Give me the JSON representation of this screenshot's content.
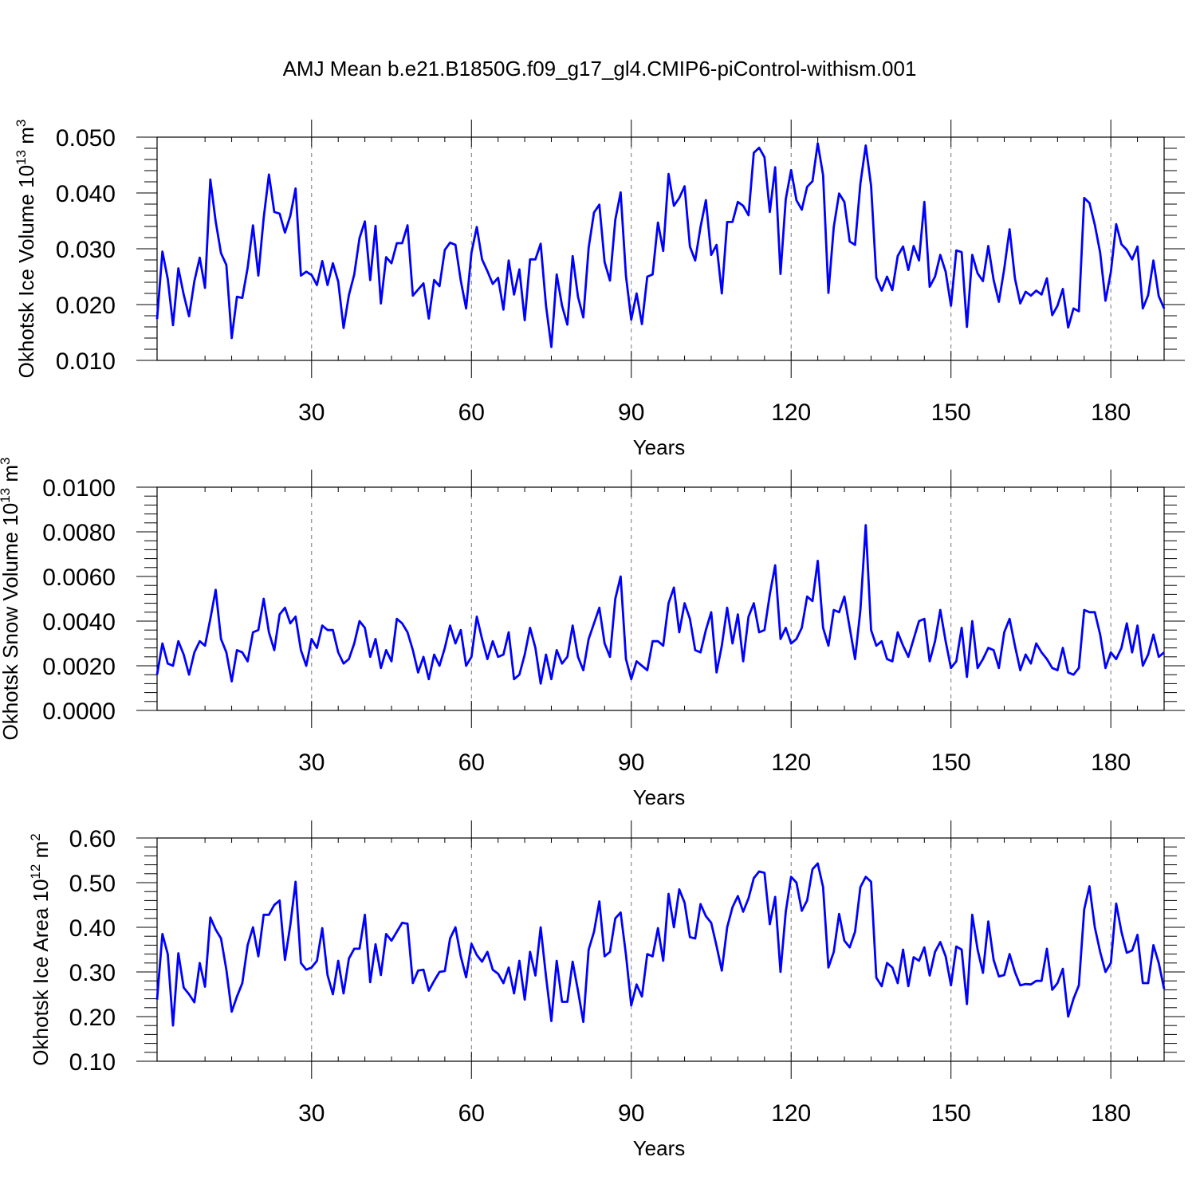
{
  "title": "AMJ Mean b.e21.B1850G.f09_g17_gl4.CMIP6-piControl-withism.001",
  "chart_data": [
    {
      "type": "line",
      "title": "",
      "xlabel": "Years",
      "ylabel_main": "Okhotsk Ice Volume 10",
      "ylabel_exp1": "13",
      "ylabel_unit": " m",
      "ylabel_exp2": "3",
      "xlim": [
        1,
        190
      ],
      "ylim": [
        0.01,
        0.05
      ],
      "xticks": [
        30,
        60,
        90,
        120,
        150,
        180
      ],
      "xtick_labels": [
        "30",
        "60",
        "90",
        "120",
        "150",
        "180"
      ],
      "yticks": [
        0.01,
        0.02,
        0.03,
        0.04,
        0.05
      ],
      "ytick_labels": [
        "0.010",
        "0.020",
        "0.030",
        "0.040",
        "0.050"
      ],
      "grid": "vertical dashed at x ticks",
      "color": "#0000ff",
      "series": [
        {
          "name": "Okhotsk Ice Volume",
          "values": [
            0.0174,
            0.0295,
            0.0246,
            0.0163,
            0.0265,
            0.0218,
            0.0179,
            0.0242,
            0.0284,
            0.023,
            0.0424,
            0.0349,
            0.0292,
            0.0271,
            0.014,
            0.0214,
            0.0212,
            0.0266,
            0.0342,
            0.0252,
            0.0355,
            0.0433,
            0.0366,
            0.0363,
            0.0329,
            0.0359,
            0.0408,
            0.0252,
            0.0259,
            0.0253,
            0.0235,
            0.0278,
            0.0235,
            0.0274,
            0.0241,
            0.0158,
            0.0217,
            0.0254,
            0.0319,
            0.0349,
            0.0244,
            0.0341,
            0.0202,
            0.0285,
            0.0274,
            0.031,
            0.031,
            0.0342,
            0.0216,
            0.0227,
            0.0238,
            0.0175,
            0.0244,
            0.0233,
            0.0298,
            0.0311,
            0.0307,
            0.0243,
            0.0193,
            0.0293,
            0.0339,
            0.0281,
            0.026,
            0.0237,
            0.0248,
            0.0191,
            0.0279,
            0.0218,
            0.0263,
            0.0172,
            0.0281,
            0.0281,
            0.0309,
            0.0198,
            0.0124,
            0.0254,
            0.0198,
            0.0164,
            0.0287,
            0.0214,
            0.0177,
            0.0302,
            0.0365,
            0.0379,
            0.0276,
            0.0243,
            0.0352,
            0.0401,
            0.0251,
            0.0173,
            0.022,
            0.0165,
            0.025,
            0.0254,
            0.0347,
            0.0296,
            0.0434,
            0.0377,
            0.0391,
            0.0412,
            0.0304,
            0.0279,
            0.0339,
            0.0387,
            0.0289,
            0.0307,
            0.022,
            0.0348,
            0.0348,
            0.0384,
            0.0377,
            0.036,
            0.0472,
            0.0481,
            0.0464,
            0.0366,
            0.0446,
            0.0255,
            0.0389,
            0.0441,
            0.0387,
            0.037,
            0.0411,
            0.0421,
            0.0489,
            0.0432,
            0.0221,
            0.0339,
            0.0399,
            0.0384,
            0.0313,
            0.0307,
            0.0417,
            0.0485,
            0.0413,
            0.0248,
            0.0225,
            0.025,
            0.0226,
            0.0287,
            0.0304,
            0.0262,
            0.0305,
            0.0279,
            0.0384,
            0.0232,
            0.025,
            0.0289,
            0.0259,
            0.0198,
            0.0297,
            0.0294,
            0.016,
            0.0289,
            0.0256,
            0.0242,
            0.0305,
            0.0244,
            0.0205,
            0.0264,
            0.0335,
            0.0247,
            0.0202,
            0.0223,
            0.0216,
            0.0225,
            0.0218,
            0.0247,
            0.0181,
            0.0198,
            0.0228,
            0.0159,
            0.0193,
            0.0188,
            0.0391,
            0.0382,
            0.0343,
            0.0293,
            0.0207,
            0.0258,
            0.0344,
            0.0308,
            0.0298,
            0.0281,
            0.0304,
            0.0193,
            0.0217,
            0.0279,
            0.0215,
            0.0193
          ]
        }
      ]
    },
    {
      "type": "line",
      "title": "",
      "xlabel": "Years",
      "ylabel_main": "Okhotsk Snow Volume 10",
      "ylabel_exp1": "13",
      "ylabel_unit": " m",
      "ylabel_exp2": "3",
      "xlim": [
        1,
        190
      ],
      "ylim": [
        0.0,
        0.01
      ],
      "xticks": [
        30,
        60,
        90,
        120,
        150,
        180
      ],
      "xtick_labels": [
        "30",
        "60",
        "90",
        "120",
        "150",
        "180"
      ],
      "yticks": [
        0.0,
        0.002,
        0.004,
        0.006,
        0.008,
        0.01
      ],
      "ytick_labels": [
        "0.0000",
        "0.0020",
        "0.0040",
        "0.0060",
        "0.0080",
        "0.0100"
      ],
      "grid": "vertical dashed at x ticks",
      "color": "#0000ff",
      "series": [
        {
          "name": "Okhotsk Snow Volume",
          "values": [
            0.0016,
            0.003,
            0.0021,
            0.002,
            0.0031,
            0.0025,
            0.0016,
            0.0026,
            0.0031,
            0.0029,
            0.0041,
            0.0054,
            0.0032,
            0.0026,
            0.0013,
            0.0027,
            0.0026,
            0.0022,
            0.0035,
            0.0036,
            0.005,
            0.0035,
            0.0027,
            0.0043,
            0.0046,
            0.0039,
            0.0042,
            0.0027,
            0.002,
            0.0032,
            0.0028,
            0.0038,
            0.0036,
            0.0036,
            0.0026,
            0.0021,
            0.0023,
            0.003,
            0.004,
            0.0037,
            0.0024,
            0.0032,
            0.0019,
            0.0027,
            0.0022,
            0.0041,
            0.0039,
            0.0035,
            0.0027,
            0.0017,
            0.0024,
            0.0014,
            0.0025,
            0.002,
            0.0028,
            0.0038,
            0.003,
            0.0036,
            0.002,
            0.0024,
            0.0042,
            0.0032,
            0.0023,
            0.0031,
            0.0024,
            0.0025,
            0.0035,
            0.0014,
            0.0016,
            0.0025,
            0.0037,
            0.0028,
            0.0012,
            0.0025,
            0.0014,
            0.0027,
            0.0021,
            0.0024,
            0.0038,
            0.0024,
            0.0018,
            0.0032,
            0.0039,
            0.0046,
            0.003,
            0.0024,
            0.005,
            0.006,
            0.0023,
            0.0014,
            0.0022,
            0.002,
            0.0018,
            0.0031,
            0.0031,
            0.0029,
            0.0048,
            0.0055,
            0.0035,
            0.0048,
            0.0041,
            0.0027,
            0.0026,
            0.0036,
            0.0044,
            0.0017,
            0.0029,
            0.0046,
            0.003,
            0.0043,
            0.0022,
            0.0042,
            0.0048,
            0.0035,
            0.0036,
            0.0052,
            0.0065,
            0.0032,
            0.0037,
            0.003,
            0.0032,
            0.0037,
            0.0051,
            0.0049,
            0.0067,
            0.0037,
            0.0029,
            0.0045,
            0.0044,
            0.0051,
            0.0037,
            0.0023,
            0.0045,
            0.0083,
            0.0036,
            0.0029,
            0.0031,
            0.0023,
            0.0022,
            0.0035,
            0.0029,
            0.0024,
            0.0032,
            0.004,
            0.0041,
            0.0022,
            0.0031,
            0.0045,
            0.0031,
            0.0019,
            0.0022,
            0.0037,
            0.0015,
            0.004,
            0.0019,
            0.0023,
            0.0028,
            0.0027,
            0.0019,
            0.0035,
            0.0041,
            0.0029,
            0.0018,
            0.0025,
            0.0021,
            0.003,
            0.0026,
            0.0023,
            0.0019,
            0.0018,
            0.0028,
            0.0017,
            0.0016,
            0.0019,
            0.0045,
            0.0044,
            0.0044,
            0.0034,
            0.0019,
            0.0026,
            0.0023,
            0.0028,
            0.0039,
            0.0026,
            0.0038,
            0.002,
            0.0025,
            0.0034,
            0.0024,
            0.0026
          ]
        }
      ]
    },
    {
      "type": "line",
      "title": "",
      "xlabel": "Years",
      "ylabel_main": "Okhotsk Ice Area 10",
      "ylabel_exp1": "12",
      "ylabel_unit": " m",
      "ylabel_exp2": "2",
      "xlim": [
        1,
        190
      ],
      "ylim": [
        0.1,
        0.6
      ],
      "xticks": [
        30,
        60,
        90,
        120,
        150,
        180
      ],
      "xtick_labels": [
        "30",
        "60",
        "90",
        "120",
        "150",
        "180"
      ],
      "yticks": [
        0.1,
        0.2,
        0.3,
        0.4,
        0.5,
        0.6
      ],
      "ytick_labels": [
        "0.10",
        "0.20",
        "0.30",
        "0.40",
        "0.50",
        "0.60"
      ],
      "grid": "vertical dashed at x ticks",
      "color": "#0000ff",
      "series": [
        {
          "name": "Okhotsk Ice Area",
          "values": [
            0.238,
            0.385,
            0.34,
            0.18,
            0.342,
            0.265,
            0.25,
            0.232,
            0.32,
            0.267,
            0.422,
            0.395,
            0.375,
            0.305,
            0.211,
            0.245,
            0.275,
            0.36,
            0.4,
            0.335,
            0.428,
            0.428,
            0.45,
            0.46,
            0.327,
            0.405,
            0.502,
            0.32,
            0.305,
            0.31,
            0.325,
            0.398,
            0.293,
            0.25,
            0.325,
            0.252,
            0.33,
            0.352,
            0.352,
            0.428,
            0.277,
            0.362,
            0.293,
            0.385,
            0.37,
            0.39,
            0.41,
            0.408,
            0.275,
            0.303,
            0.305,
            0.258,
            0.28,
            0.3,
            0.302,
            0.375,
            0.4,
            0.335,
            0.288,
            0.363,
            0.338,
            0.323,
            0.345,
            0.305,
            0.296,
            0.275,
            0.31,
            0.252,
            0.325,
            0.238,
            0.345,
            0.292,
            0.4,
            0.29,
            0.19,
            0.325,
            0.233,
            0.233,
            0.323,
            0.258,
            0.188,
            0.35,
            0.39,
            0.458,
            0.335,
            0.345,
            0.42,
            0.433,
            0.338,
            0.225,
            0.272,
            0.245,
            0.34,
            0.335,
            0.398,
            0.325,
            0.475,
            0.4,
            0.485,
            0.455,
            0.378,
            0.375,
            0.452,
            0.425,
            0.41,
            0.358,
            0.303,
            0.4,
            0.445,
            0.47,
            0.435,
            0.465,
            0.51,
            0.525,
            0.522,
            0.407,
            0.468,
            0.3,
            0.435,
            0.513,
            0.5,
            0.437,
            0.46,
            0.53,
            0.543,
            0.49,
            0.31,
            0.345,
            0.43,
            0.37,
            0.355,
            0.39,
            0.49,
            0.513,
            0.502,
            0.287,
            0.268,
            0.32,
            0.31,
            0.275,
            0.35,
            0.268,
            0.333,
            0.325,
            0.355,
            0.292,
            0.345,
            0.367,
            0.335,
            0.27,
            0.357,
            0.35,
            0.228,
            0.428,
            0.35,
            0.298,
            0.413,
            0.327,
            0.29,
            0.293,
            0.34,
            0.3,
            0.27,
            0.273,
            0.272,
            0.28,
            0.28,
            0.352,
            0.26,
            0.275,
            0.307,
            0.2,
            0.24,
            0.27,
            0.44,
            0.492,
            0.4,
            0.345,
            0.3,
            0.32,
            0.453,
            0.39,
            0.343,
            0.348,
            0.383,
            0.275,
            0.275,
            0.36,
            0.32,
            0.262
          ]
        }
      ]
    }
  ]
}
